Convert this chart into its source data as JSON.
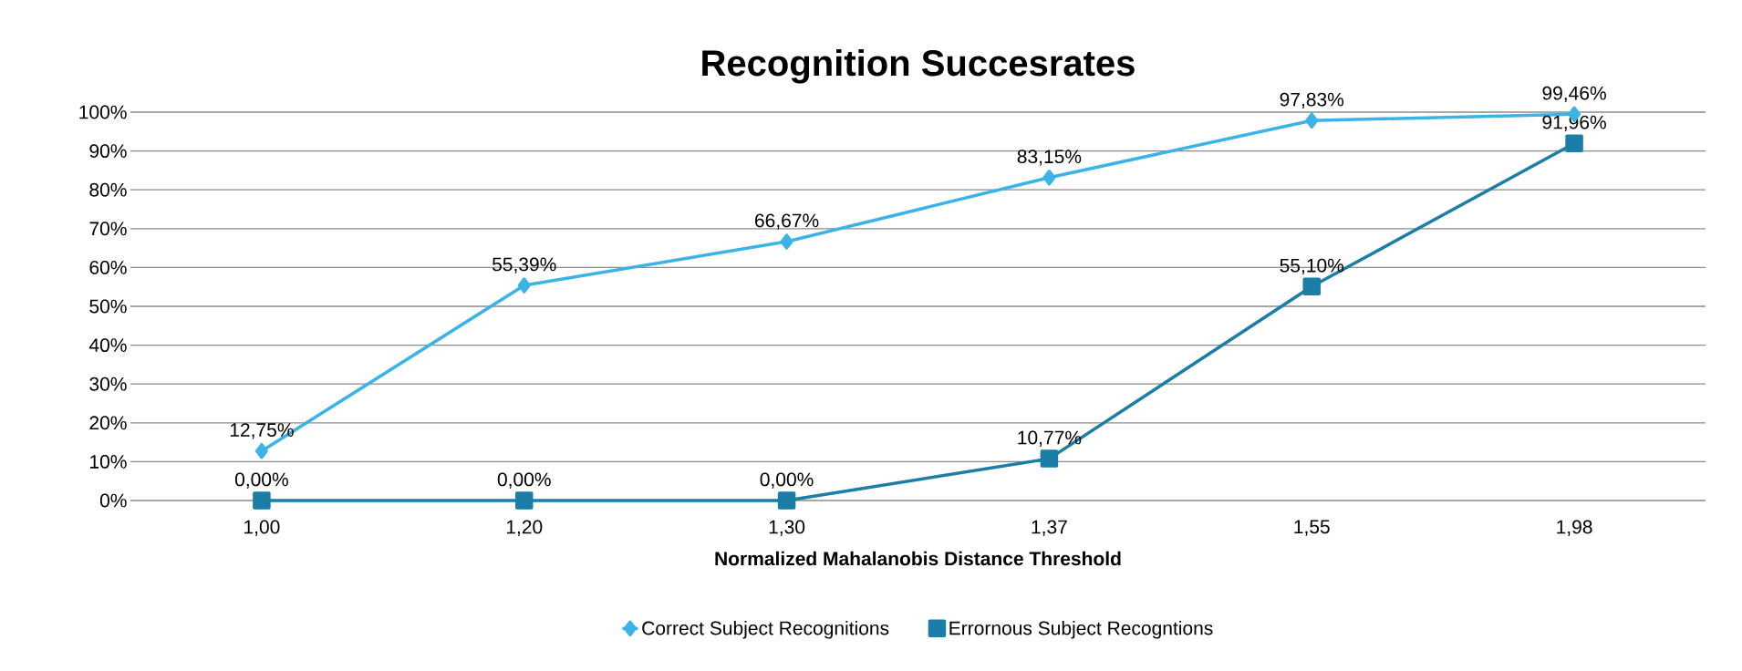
{
  "chart_data": {
    "type": "line",
    "title": "Recognition Succesrates",
    "xlabel": "Normalized Mahalanobis Distance Threshold",
    "categories": [
      "1,00",
      "1,20",
      "1,30",
      "1,37",
      "1,55",
      "1,98"
    ],
    "series": [
      {
        "name": "Correct Subject Recognitions",
        "color": "#3bb3e6",
        "marker": "diamond",
        "values": [
          12.75,
          55.39,
          66.67,
          83.15,
          97.83,
          99.46
        ],
        "value_labels": [
          "12,75%",
          "55,39%",
          "66,67%",
          "83,15%",
          "97,83%",
          "99,46%"
        ]
      },
      {
        "name": "Errornous Subject Recogntions",
        "color": "#1a7ea6",
        "marker": "square",
        "values": [
          0,
          0,
          0,
          10.77,
          55.1,
          91.96
        ],
        "value_labels": [
          "0,00%",
          "0,00%",
          "0,00%",
          "10,77%",
          "55,10%",
          "91,96%"
        ]
      }
    ],
    "ylim": [
      0,
      100
    ],
    "yticks": [
      {
        "value": 0,
        "label": "0%"
      },
      {
        "value": 10,
        "label": "10%"
      },
      {
        "value": 20,
        "label": "20%"
      },
      {
        "value": 30,
        "label": "30%"
      },
      {
        "value": 40,
        "label": "40%"
      },
      {
        "value": 50,
        "label": "50%"
      },
      {
        "value": 60,
        "label": "60%"
      },
      {
        "value": 70,
        "label": "70%"
      },
      {
        "value": 80,
        "label": "80%"
      },
      {
        "value": 90,
        "label": "90%"
      },
      {
        "value": 100,
        "label": "100%"
      }
    ],
    "grid": "y",
    "legend": "bottom",
    "line_style": "solid"
  }
}
